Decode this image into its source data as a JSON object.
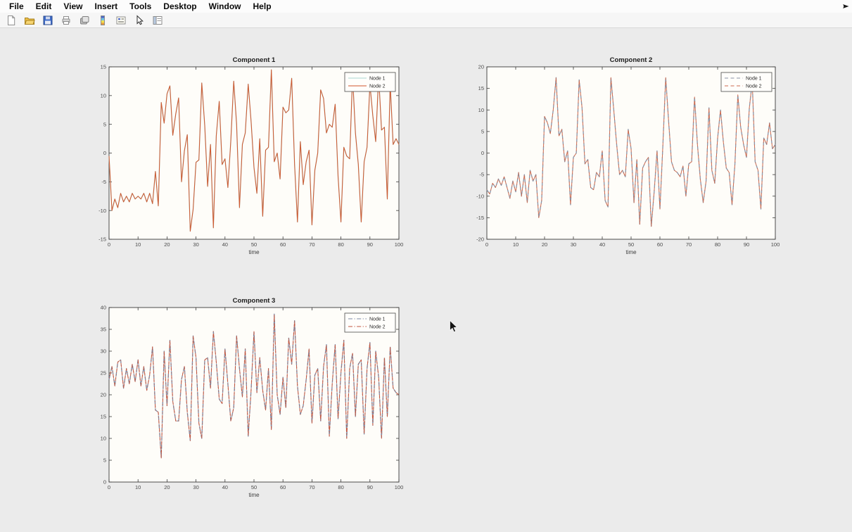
{
  "window": {
    "background": "#ebebeb",
    "menubar_background": "#fcfcfc",
    "toolbar_background": "#f6f6f6",
    "plot_background": "#fefdf9",
    "axis_color": "#3a3a3a"
  },
  "menu_bar": {
    "items": [
      "File",
      "Edit",
      "View",
      "Insert",
      "Tools",
      "Desktop",
      "Window",
      "Help"
    ]
  },
  "toolbar": {
    "buttons": [
      "new-figure",
      "open-file",
      "save-figure",
      "print-figure",
      "copy-figure",
      "insert-colorbar",
      "insert-legend",
      "edit-plot",
      "plot-tools"
    ],
    "overflow_icon": "toolbar-overflow"
  },
  "axes_toolbar": {
    "buttons": [
      "export",
      "brush",
      "datatips",
      "pan",
      "zoom-in",
      "zoom-out",
      "restore-view"
    ]
  },
  "chart_data": [
    {
      "type": "line",
      "title": "Component 1",
      "xlabel": "time",
      "x": {
        "start": 0,
        "end": 100,
        "step": 1
      },
      "xticks": [
        0,
        10,
        20,
        30,
        40,
        50,
        60,
        70,
        80,
        90,
        100
      ],
      "ylim": [
        -15,
        15
      ],
      "yticks": [
        -15,
        -10,
        -5,
        0,
        5,
        10,
        15
      ],
      "grid": false,
      "line_style": "solid",
      "legend": {
        "position": "top-right",
        "entries": [
          "Node 1",
          "Node 2"
        ]
      },
      "series": [
        {
          "name": "Node 1",
          "color": "#a9d6d1",
          "values": [
            -0.5,
            -10,
            -8,
            -9.5,
            -7,
            -8.5,
            -7.5,
            -8.5,
            -7,
            -8,
            -7.5,
            -8,
            -7,
            -8.5,
            -7,
            -8.8,
            -3.2,
            -9.2,
            8.8,
            5.2,
            10.3,
            11.7,
            3.1,
            6.8,
            9.6,
            -5,
            0.4,
            3.2,
            -13.6,
            -9.8,
            -1.6,
            -1.2,
            12.2,
            4.8,
            -5.8,
            1.5,
            -13,
            3,
            9,
            -2,
            -1,
            -6,
            2,
            12.5,
            5,
            -9.5,
            1.5,
            3.5,
            12,
            5.5,
            -2.5,
            -7,
            2.5,
            -11,
            0.5,
            1,
            14.5,
            -1.5,
            0,
            -4.5,
            8,
            7,
            7.5,
            13,
            -2,
            -12,
            2,
            -5.5,
            -1.5,
            0.5,
            -12.5,
            -3,
            0,
            11,
            9.5,
            3.5,
            5,
            4.5,
            8.5,
            -4,
            -12,
            1,
            -0.5,
            -1,
            13.5,
            3.5,
            -2,
            -12,
            -1.5,
            1,
            12,
            6.5,
            2,
            13.5,
            4,
            4.5,
            -8,
            12,
            1.5,
            2.5,
            1.5
          ]
        },
        {
          "name": "Node 2",
          "color": "#d2572e",
          "values": [
            -0.5,
            -10,
            -8,
            -9.5,
            -7,
            -8.5,
            -7.5,
            -8.5,
            -7,
            -8,
            -7.5,
            -8,
            -7,
            -8.5,
            -7,
            -8.8,
            -3.2,
            -9.2,
            8.8,
            5.2,
            10.3,
            11.7,
            3.1,
            6.8,
            9.6,
            -5,
            0.4,
            3.2,
            -13.6,
            -9.8,
            -1.6,
            -1.2,
            12.2,
            4.8,
            -5.8,
            1.5,
            -13,
            3,
            9,
            -2,
            -1,
            -6,
            2,
            12.5,
            5,
            -9.5,
            1.5,
            3.5,
            12,
            5.5,
            -2.5,
            -7,
            2.5,
            -11,
            0.5,
            1,
            14.5,
            -1.5,
            0,
            -4.5,
            8,
            7,
            7.5,
            13,
            -2,
            -12,
            2,
            -5.5,
            -1.5,
            0.5,
            -12.5,
            -3,
            0,
            11,
            9.5,
            3.5,
            5,
            4.5,
            8.5,
            -4,
            -12,
            1,
            -0.5,
            -1,
            13.5,
            3.5,
            -2,
            -12,
            -1.5,
            1,
            12,
            6.5,
            2,
            13.5,
            4,
            4.5,
            -8,
            12,
            1.5,
            2.5,
            1.5
          ]
        }
      ]
    },
    {
      "type": "line",
      "title": "Component 2",
      "xlabel": "time",
      "x": {
        "start": 0,
        "end": 100,
        "step": 1
      },
      "xticks": [
        0,
        10,
        20,
        30,
        40,
        50,
        60,
        70,
        80,
        90,
        100
      ],
      "ylim": [
        -20,
        20
      ],
      "yticks": [
        -20,
        -15,
        -10,
        -5,
        0,
        5,
        10,
        15,
        20
      ],
      "grid": false,
      "line_style": "dashed",
      "legend": {
        "position": "top-right",
        "entries": [
          "Node 1",
          "Node 2"
        ]
      },
      "series": [
        {
          "name": "Node 1",
          "color": "#8a93a6",
          "values": [
            -8.5,
            -9.5,
            -7,
            -8,
            -6,
            -7.5,
            -5.5,
            -8,
            -10.5,
            -6.5,
            -9,
            -4.5,
            -10,
            -5,
            -11.5,
            -4,
            -6.5,
            -5,
            -15,
            -11,
            8.5,
            7,
            4.5,
            10,
            17.5,
            4,
            5.5,
            -2,
            0.5,
            -12,
            -1,
            0,
            17,
            10.5,
            -2.5,
            -1.5,
            -8,
            -8.5,
            -4.5,
            -5.5,
            0.5,
            -11,
            -12.5,
            17.5,
            10,
            2,
            -5,
            -4,
            -5.5,
            5.5,
            1,
            -11.5,
            -1.5,
            -16.5,
            -3.5,
            -2,
            -1,
            -17,
            -9,
            0.5,
            -13,
            1.5,
            17.5,
            7.5,
            -2,
            -4,
            -4.5,
            -5.5,
            -3,
            -10,
            -2.5,
            -2,
            13,
            2,
            -6,
            -11.5,
            -6.5,
            10.5,
            -4,
            -7,
            3.5,
            10,
            2.5,
            -3.5,
            -4.5,
            -12,
            -2.5,
            13.5,
            6,
            2,
            -1,
            10.5,
            16.5,
            -2,
            -4,
            -13,
            3.5,
            2,
            7,
            1,
            2
          ]
        },
        {
          "name": "Node 2",
          "color": "#cb6a4f",
          "values": [
            -8.5,
            -9.5,
            -7,
            -8,
            -6,
            -7.5,
            -5.5,
            -8,
            -10.5,
            -6.5,
            -9,
            -4.5,
            -10,
            -5,
            -11.5,
            -4,
            -6.5,
            -5,
            -15,
            -11,
            8.5,
            7,
            4.5,
            10,
            17.5,
            4,
            5.5,
            -2,
            0.5,
            -12,
            -1,
            0,
            17,
            10.5,
            -2.5,
            -1.5,
            -8,
            -8.5,
            -4.5,
            -5.5,
            0.5,
            -11,
            -12.5,
            17.5,
            10,
            2,
            -5,
            -4,
            -5.5,
            5.5,
            1,
            -11.5,
            -1.5,
            -16.5,
            -3.5,
            -2,
            -1,
            -17,
            -9,
            0.5,
            -13,
            1.5,
            17.5,
            7.5,
            -2,
            -4,
            -4.5,
            -5.5,
            -3,
            -10,
            -2.5,
            -2,
            13,
            2,
            -6,
            -11.5,
            -6.5,
            10.5,
            -4,
            -7,
            3.5,
            10,
            2.5,
            -3.5,
            -4.5,
            -12,
            -2.5,
            13.5,
            6,
            2,
            -1,
            10.5,
            16.5,
            -2,
            -4,
            -13,
            3.5,
            2,
            7,
            1,
            2
          ]
        }
      ]
    },
    {
      "type": "line",
      "title": "Component 3",
      "xlabel": "time",
      "x": {
        "start": 0,
        "end": 100,
        "step": 1
      },
      "xticks": [
        0,
        10,
        20,
        30,
        40,
        50,
        60,
        70,
        80,
        90,
        100
      ],
      "ylim": [
        0,
        40
      ],
      "yticks": [
        0,
        5,
        10,
        15,
        20,
        25,
        30,
        35,
        40
      ],
      "grid": false,
      "line_style": "dash-dot",
      "legend": {
        "position": "top-right",
        "entries": [
          "Node 1",
          "Node 2"
        ]
      },
      "series": [
        {
          "name": "Node 1",
          "color": "#7d8aa5",
          "values": [
            23.5,
            26.5,
            22,
            27.5,
            28,
            21.5,
            26,
            22.5,
            27,
            23,
            28,
            22,
            26.5,
            21,
            24.5,
            31,
            16.5,
            16,
            5.5,
            30,
            17.5,
            32.5,
            18.5,
            14,
            14,
            23.5,
            26.5,
            16,
            9.5,
            33.5,
            28.5,
            13.5,
            10,
            28,
            28.5,
            21.5,
            34.5,
            27.5,
            19,
            18,
            30.5,
            22.5,
            14,
            17,
            33.5,
            26,
            19.5,
            30.5,
            10.5,
            21,
            34.5,
            20.5,
            28.5,
            21,
            16.5,
            26,
            12,
            38.5,
            20,
            15.5,
            24,
            17,
            33,
            27,
            37,
            22,
            15.5,
            17.5,
            23.5,
            30.5,
            13.5,
            24.5,
            26,
            14,
            26.5,
            31.5,
            10.5,
            22.5,
            31.5,
            14.5,
            25,
            32.5,
            10,
            26,
            29.5,
            15,
            27,
            28,
            11,
            26,
            32,
            13,
            30,
            24,
            10,
            28.5,
            15,
            31,
            21.5,
            20.5,
            20
          ]
        },
        {
          "name": "Node 2",
          "color": "#c2563f",
          "values": [
            23.5,
            26.5,
            22,
            27.5,
            28,
            21.5,
            26,
            22.5,
            27,
            23,
            28,
            22,
            26.5,
            21,
            24.5,
            31,
            16.5,
            16,
            5.5,
            30,
            17.5,
            32.5,
            18.5,
            14,
            14,
            23.5,
            26.5,
            16,
            9.5,
            33.5,
            28.5,
            13.5,
            10,
            28,
            28.5,
            21.5,
            34.5,
            27.5,
            19,
            18,
            30.5,
            22.5,
            14,
            17,
            33.5,
            26,
            19.5,
            30.5,
            10.5,
            21,
            34.5,
            20.5,
            28.5,
            21,
            16.5,
            26,
            12,
            38.5,
            20,
            15.5,
            24,
            17,
            33,
            27,
            37,
            22,
            15.5,
            17.5,
            23.5,
            30.5,
            13.5,
            24.5,
            26,
            14,
            26.5,
            31.5,
            10.5,
            22.5,
            31.5,
            14.5,
            25,
            32.5,
            10,
            26,
            29.5,
            15,
            27,
            28,
            11,
            26,
            32,
            13,
            30,
            24,
            10,
            28.5,
            15,
            31,
            21.5,
            20.5,
            20
          ]
        }
      ]
    }
  ]
}
